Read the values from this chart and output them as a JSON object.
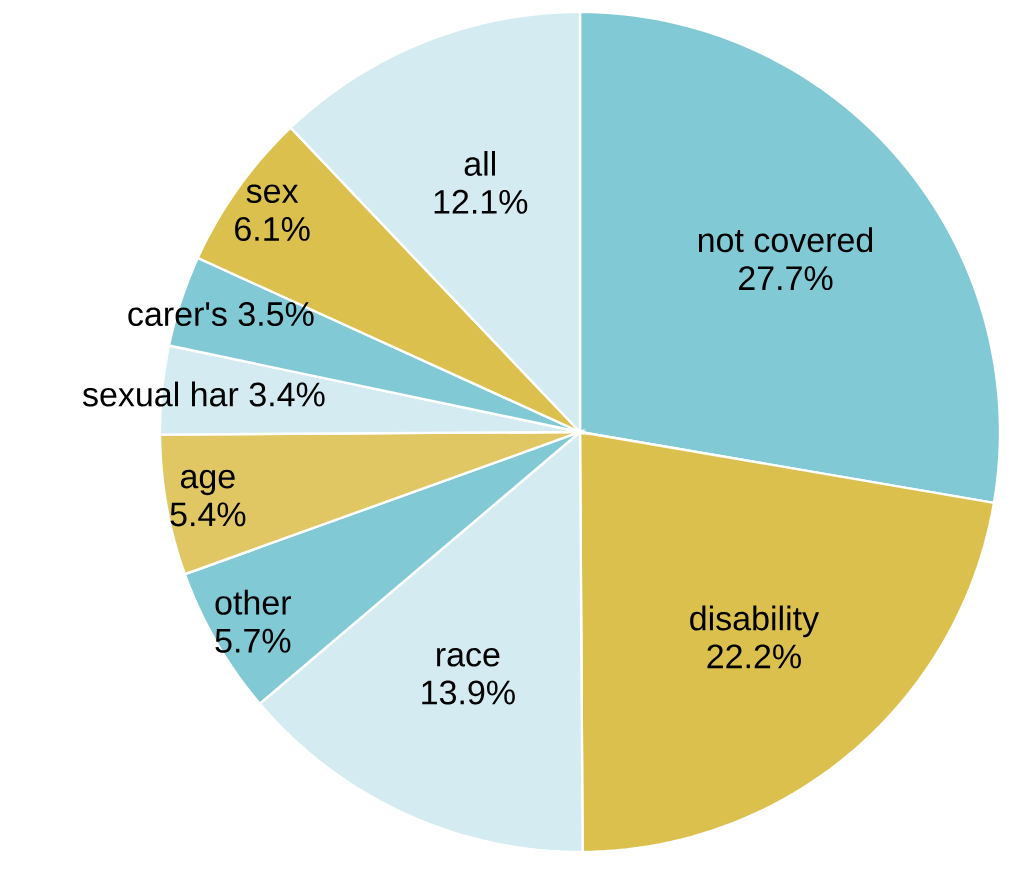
{
  "chart_data": {
    "type": "pie",
    "categories": [
      "not covered",
      "disability",
      "race",
      "other",
      "age",
      "sexual har",
      "carer's",
      "sex",
      "all"
    ],
    "values": [
      27.7,
      22.2,
      13.9,
      5.7,
      5.4,
      3.4,
      3.5,
      6.1,
      12.1
    ],
    "value_labels": [
      "27.7%",
      "22.2%",
      "13.9%",
      "5.7%",
      "5.4%",
      "3.4%",
      "3.5%",
      "6.1%",
      "12.1%"
    ],
    "colors": [
      "#80c9d5",
      "#dcc04e",
      "#d3ebf1",
      "#80c9d5",
      "#e1c664",
      "#d3ebf1",
      "#80c9d5",
      "#dcc04e",
      "#d3ebf1"
    ]
  }
}
